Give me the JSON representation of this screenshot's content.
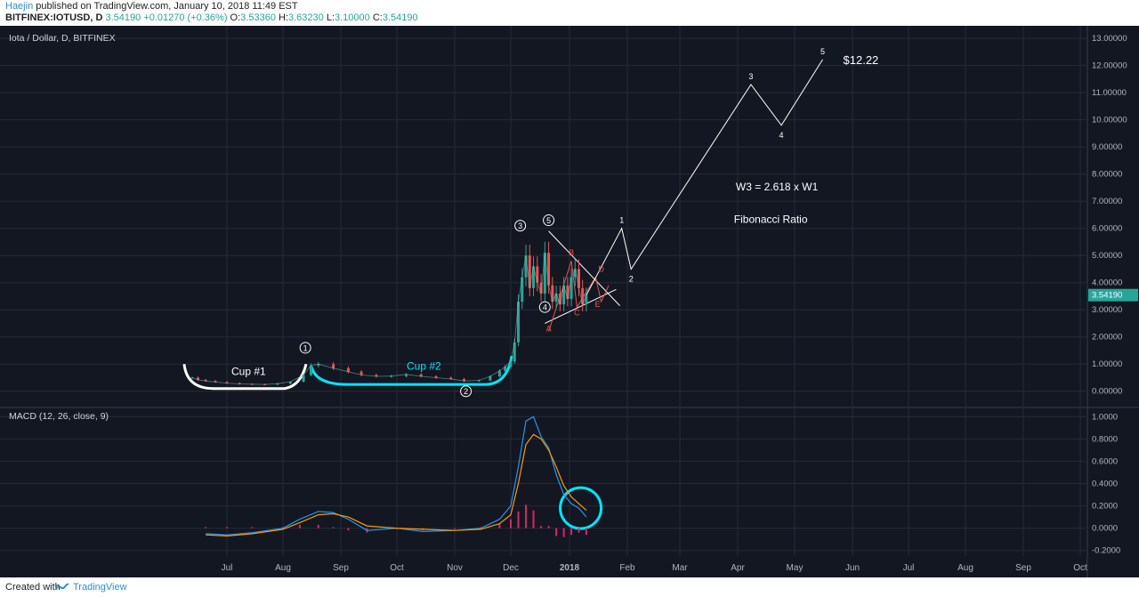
{
  "header": {
    "author": "Haejin",
    "published_text": "published on TradingView.com, January 10, 2018 11:49 EST",
    "symbol": "BITFINEX:IOTUSD",
    "interval": ", D",
    "last": "3.54190",
    "change": "+0.01270 (+0.36%)",
    "open_label": "O:",
    "open": "3.53360",
    "high_label": "H:",
    "high": "3.63230",
    "low_label": "L:",
    "low": "3.10000",
    "close_label": "C:",
    "close": "3.54190"
  },
  "footer": {
    "created_with": "Created with",
    "brand": "TradingView"
  },
  "colors": {
    "background": "#131722",
    "grid": "#262b38",
    "up": "#26a69a",
    "down": "#ef5350",
    "macd_line": "#2196f3",
    "signal_line": "#ff9800",
    "histogram": "#e91e63",
    "cup1": "#ffffff",
    "cup2": "#00e5ff",
    "abcde": "#ef5350",
    "projection": "#ffffff"
  },
  "chart_data": [
    {
      "type": "line",
      "title": "Iota / Dollar, D, BITFINEX",
      "legend": "top-left",
      "price_label": "3.54190",
      "x_ticks": [
        "Jul",
        "Aug",
        "Sep",
        "Oct",
        "Nov",
        "Dec",
        "2018",
        "Feb",
        "Mar",
        "Apr",
        "May",
        "Jun",
        "Jul",
        "Aug",
        "Sep",
        "Oct"
      ],
      "y_ticks": [
        "0.00000",
        "1.00000",
        "2.00000",
        "3.00000",
        "4.00000",
        "5.00000",
        "6.00000",
        "7.00000",
        "8.00000",
        "9.00000",
        "10.00000",
        "11.00000",
        "12.00000",
        "13.00000"
      ],
      "ylim": [
        -0.5,
        13.3
      ],
      "price_x": [
        "2017-06-13",
        "2017-06-16",
        "2017-06-20",
        "2017-06-25",
        "2017-07-01",
        "2017-07-08",
        "2017-07-15",
        "2017-07-22",
        "2017-07-29",
        "2017-08-05",
        "2017-08-12",
        "2017-08-16",
        "2017-08-20",
        "2017-08-28",
        "2017-09-05",
        "2017-09-12",
        "2017-09-20",
        "2017-09-28",
        "2017-10-06",
        "2017-10-14",
        "2017-10-22",
        "2017-10-30",
        "2017-11-06",
        "2017-11-14",
        "2017-11-20",
        "2017-11-25",
        "2017-11-28",
        "2017-12-01",
        "2017-12-03",
        "2017-12-05",
        "2017-12-07",
        "2017-12-09",
        "2017-12-11",
        "2017-12-13",
        "2017-12-15",
        "2017-12-17",
        "2017-12-19",
        "2017-12-21",
        "2017-12-23",
        "2017-12-25",
        "2017-12-27",
        "2017-12-29",
        "2017-12-31",
        "2018-01-02",
        "2018-01-04",
        "2018-01-06",
        "2018-01-08",
        "2018-01-10"
      ],
      "price_close": [
        0.5,
        0.42,
        0.38,
        0.34,
        0.3,
        0.27,
        0.26,
        0.25,
        0.28,
        0.35,
        0.6,
        0.95,
        1.0,
        0.85,
        0.72,
        0.6,
        0.55,
        0.56,
        0.62,
        0.55,
        0.5,
        0.45,
        0.38,
        0.4,
        0.55,
        0.75,
        0.9,
        1.1,
        1.8,
        3.3,
        4.2,
        5.0,
        3.8,
        4.6,
        4.0,
        3.6,
        5.1,
        3.9,
        3.3,
        3.6,
        3.2,
        3.9,
        3.4,
        4.2,
        4.5,
        3.8,
        3.2,
        3.54
      ],
      "wave_labels": [
        {
          "label": "1",
          "x": "2017-08-13",
          "y": 1.6
        },
        {
          "label": "2",
          "x": "2017-11-07",
          "y": 0.0
        },
        {
          "label": "3",
          "x": "2017-12-06",
          "y": 6.1
        },
        {
          "label": "4",
          "x": "2017-12-19",
          "y": 3.1
        },
        {
          "label": "5",
          "x": "2017-12-21",
          "y": 6.3
        }
      ],
      "abcde_labels": [
        {
          "label": "A",
          "x": "2017-12-21",
          "y": 2.2
        },
        {
          "label": "B",
          "x": "2018-01-02",
          "y": 5.0
        },
        {
          "label": "C",
          "x": "2018-01-05",
          "y": 2.8
        },
        {
          "label": "D",
          "x": "2018-01-18",
          "y": 4.4
        },
        {
          "label": "E",
          "x": "2018-01-16",
          "y": 3.1
        }
      ],
      "projection_x": [
        "2018-01-10",
        "2018-01-29",
        "2018-02-03",
        "2018-04-08",
        "2018-04-24",
        "2018-05-16"
      ],
      "projection_y": [
        3.54,
        6.0,
        4.5,
        11.3,
        9.8,
        12.22
      ],
      "projection_labels": [
        "1",
        "2",
        "3",
        "4",
        "5"
      ],
      "target_label": "$12.22",
      "annotations": [
        "W3 = 2.618 x W1",
        "Fibonacci Ratio"
      ],
      "cup_labels": [
        "Cup #1",
        "Cup #2"
      ]
    },
    {
      "type": "line",
      "title": "MACD (12, 26, close, 9)",
      "y_ticks": [
        "-0.2000",
        "0.0000",
        "0.2000",
        "0.4000",
        "0.6000",
        "0.8000",
        "1.0000"
      ],
      "ylim": [
        -0.25,
        1.05
      ],
      "x": [
        "2017-06-20",
        "2017-07-01",
        "2017-07-15",
        "2017-08-01",
        "2017-08-10",
        "2017-08-20",
        "2017-08-28",
        "2017-09-05",
        "2017-09-15",
        "2017-10-01",
        "2017-10-15",
        "2017-11-01",
        "2017-11-15",
        "2017-11-25",
        "2017-12-01",
        "2017-12-05",
        "2017-12-09",
        "2017-12-13",
        "2017-12-17",
        "2017-12-21",
        "2017-12-25",
        "2017-12-29",
        "2018-01-02",
        "2018-01-06",
        "2018-01-10"
      ],
      "series": [
        {
          "name": "MACD",
          "values": [
            -0.05,
            -0.06,
            -0.04,
            0.0,
            0.08,
            0.15,
            0.14,
            0.08,
            -0.02,
            0.0,
            -0.03,
            -0.02,
            0.0,
            0.08,
            0.2,
            0.55,
            0.96,
            1.0,
            0.82,
            0.72,
            0.48,
            0.3,
            0.22,
            0.18,
            0.1
          ]
        },
        {
          "name": "Signal",
          "values": [
            -0.06,
            -0.07,
            -0.05,
            -0.01,
            0.05,
            0.12,
            0.13,
            0.1,
            0.02,
            0.0,
            -0.01,
            -0.02,
            -0.01,
            0.04,
            0.12,
            0.4,
            0.75,
            0.84,
            0.8,
            0.7,
            0.55,
            0.38,
            0.28,
            0.22,
            0.16
          ]
        },
        {
          "name": "Histogram",
          "values": [
            0.01,
            0.01,
            0.01,
            0.01,
            0.03,
            0.03,
            0.01,
            -0.02,
            -0.04,
            0.0,
            -0.02,
            0.0,
            0.01,
            0.04,
            0.08,
            0.15,
            0.21,
            0.16,
            0.02,
            0.02,
            -0.07,
            -0.08,
            -0.06,
            -0.04,
            -0.06
          ]
        }
      ]
    }
  ]
}
